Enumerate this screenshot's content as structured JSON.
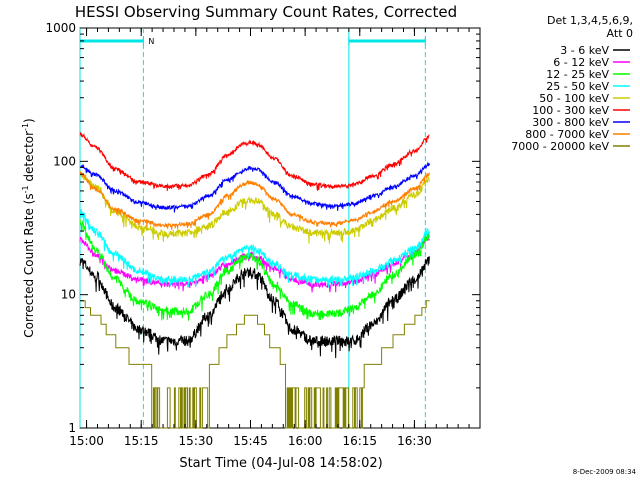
{
  "chart_data": {
    "type": "line",
    "title": "HESSI Observing Summary Count Rates, Corrected",
    "xlabel": "Start Time (04-Jul-08 14:58:02)",
    "ylabel": "Corrected Count Rate (s",
    "ylabel_sup1": "-1",
    "ylabel_mid": " detector",
    "ylabel_sup2": "-1",
    "ylabel_end": ")",
    "yscale": "log",
    "ylim": [
      1,
      1000
    ],
    "xlim_minutes": [
      14.97,
      16.8
    ],
    "x_ticks": [
      {
        "label": "15:00",
        "minute": 15.0
      },
      {
        "label": "15:15",
        "minute": 15.25
      },
      {
        "label": "15:30",
        "minute": 15.5
      },
      {
        "label": "15:45",
        "minute": 15.75
      },
      {
        "label": "16:00",
        "minute": 16.0
      },
      {
        "label": "16:15",
        "minute": 16.25
      },
      {
        "label": "16:30",
        "minute": 16.5
      }
    ],
    "y_ticks": [
      {
        "label": "1",
        "value": 1
      },
      {
        "label": "10",
        "value": 10
      },
      {
        "label": "100",
        "value": 100
      },
      {
        "label": "1000",
        "value": 1000
      }
    ],
    "legend_header": [
      "Det 1,3,4,5,6,9,",
      "Att 0"
    ],
    "legend_position": "top-right outside",
    "flag_label": "N",
    "footer_date": "8-Dec-2009 08:34",
    "x_knots": [
      14.97,
      15.04,
      15.13,
      15.24,
      15.36,
      15.46,
      15.56,
      15.64,
      15.72,
      15.75,
      15.78,
      15.86,
      15.94,
      16.04,
      16.13,
      16.22,
      16.31,
      16.4,
      16.5,
      16.57
    ],
    "series": [
      {
        "name": "3 - 6 keV",
        "color": "#000000",
        "noise": 0.09,
        "values": [
          18,
          14,
          8,
          5.5,
          4.5,
          4.5,
          7,
          11,
          14.5,
          15,
          14,
          9,
          5.5,
          4.5,
          4.5,
          4.5,
          6,
          9,
          13,
          18
        ]
      },
      {
        "name": "6 - 12 keV",
        "color": "#ff00ff",
        "noise": 0.05,
        "values": [
          26,
          20,
          15,
          13,
          12,
          12,
          14,
          17,
          19.5,
          20,
          19,
          16,
          13,
          12,
          12,
          12.5,
          14,
          17,
          21,
          27
        ]
      },
      {
        "name": "12 - 25 keV",
        "color": "#00ff00",
        "noise": 0.07,
        "values": [
          35,
          22,
          13,
          9,
          7.5,
          7.5,
          10,
          15,
          19,
          20,
          18,
          12,
          8.5,
          7.2,
          7.2,
          7.8,
          10,
          14,
          20,
          28
        ]
      },
      {
        "name": "25 - 50 keV",
        "color": "#00ffff",
        "noise": 0.06,
        "values": [
          42,
          30,
          20,
          15,
          13,
          13,
          15,
          19,
          22,
          23,
          21.5,
          17,
          14,
          13,
          13,
          13.5,
          15,
          18,
          22,
          30
        ]
      },
      {
        "name": "50 - 100 keV",
        "color": "#cccc00",
        "noise": 0.06,
        "values": [
          80,
          65,
          42,
          32,
          29,
          29,
          33,
          42,
          50,
          52,
          50,
          40,
          32,
          29,
          29,
          30,
          36,
          44,
          56,
          73
        ]
      },
      {
        "name": "100 - 300 keV",
        "color": "#ff0000",
        "noise": 0.03,
        "values": [
          160,
          128,
          88,
          70,
          65,
          66,
          80,
          110,
          135,
          140,
          135,
          105,
          78,
          67,
          65,
          67,
          78,
          95,
          120,
          155
        ]
      },
      {
        "name": "300 - 800 keV",
        "color": "#0000ff",
        "noise": 0.03,
        "values": [
          93,
          80,
          60,
          49,
          45,
          46,
          55,
          72,
          86,
          90,
          87,
          70,
          55,
          48,
          46,
          48,
          55,
          64,
          78,
          95
        ]
      },
      {
        "name": "800 - 7000 keV",
        "color": "#ff7f00",
        "noise": 0.03,
        "values": [
          82,
          62,
          44,
          36,
          33,
          34,
          40,
          55,
          67,
          70,
          67,
          52,
          40,
          35,
          34,
          36,
          42,
          50,
          62,
          80
        ]
      },
      {
        "name": "7000 - 20000 keV",
        "color": "#808000",
        "noise": 0.0,
        "stairs": true,
        "values": [
          9,
          7,
          4.5,
          3,
          2,
          2,
          2.5,
          4.5,
          6.5,
          7.5,
          6.5,
          4,
          2,
          1.5,
          1.5,
          2,
          3,
          4.5,
          6.5,
          9
        ]
      }
    ],
    "flagged_intervals": [
      {
        "label": "N",
        "from_minute": 14.97,
        "to_minute": 15.26
      },
      {
        "label": "",
        "from_minute": 16.2,
        "to_minute": 16.55
      }
    ]
  }
}
